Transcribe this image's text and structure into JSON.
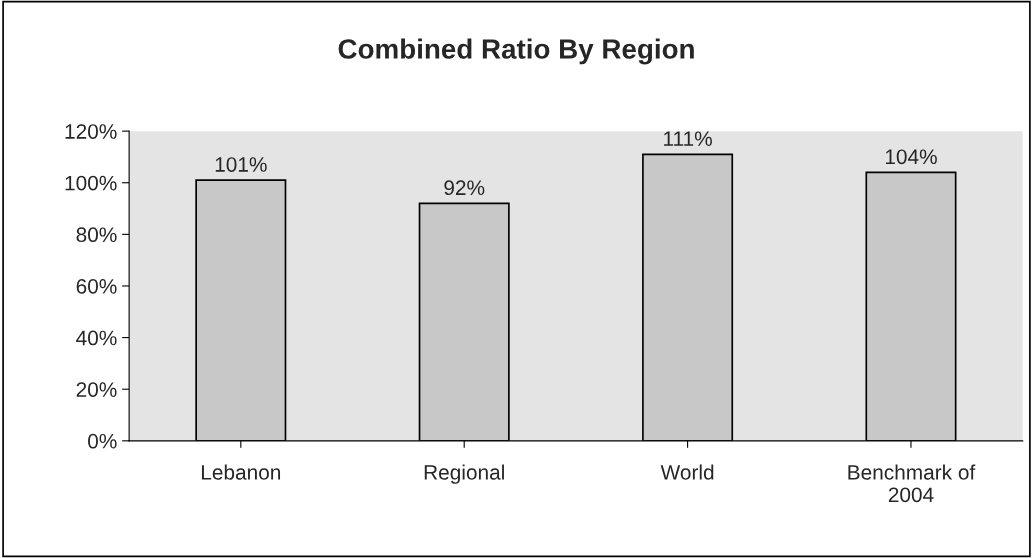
{
  "chart_data": {
    "type": "bar",
    "title": "Combined Ratio By Region",
    "categories": [
      "Lebanon",
      "Regional",
      "World",
      "Benchmark of\n2004"
    ],
    "values": [
      101,
      92,
      111,
      104
    ],
    "value_labels": [
      "101%",
      "92%",
      "111%",
      "104%"
    ],
    "color": "#c8c8c8",
    "ylim": [
      0,
      120
    ],
    "yticks": [
      {
        "value": 0,
        "label": "0%"
      },
      {
        "value": 20,
        "label": "20%"
      },
      {
        "value": 40,
        "label": "40%"
      },
      {
        "value": 60,
        "label": "60%"
      },
      {
        "value": 80,
        "label": "80%"
      },
      {
        "value": 100,
        "label": "100%"
      },
      {
        "value": 120,
        "label": "120%"
      }
    ],
    "grid": false,
    "legend": false
  }
}
